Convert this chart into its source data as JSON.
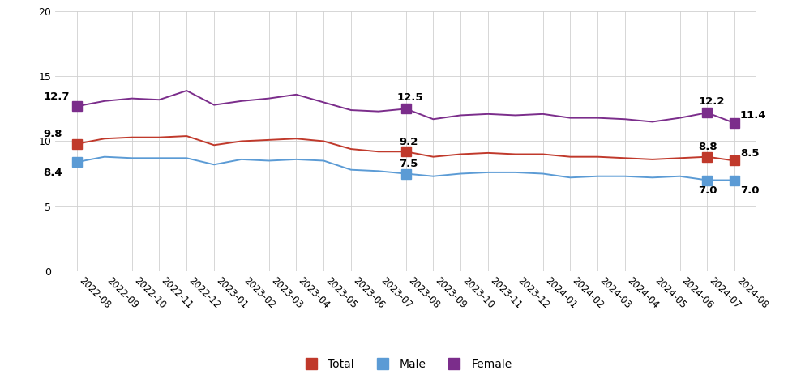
{
  "labels": [
    "2022-08",
    "2022-09",
    "2022-10",
    "2022-11",
    "2022-12",
    "2023-01",
    "2023-02",
    "2023-03",
    "2023-04",
    "2023-05",
    "2023-06",
    "2023-07",
    "2023-08",
    "2023-09",
    "2023-10",
    "2023-11",
    "2023-12",
    "2024-01",
    "2024-02",
    "2024-03",
    "2024-04",
    "2024-05",
    "2024-06",
    "2024-07",
    "2024-08"
  ],
  "total": [
    9.8,
    10.2,
    10.3,
    10.3,
    10.4,
    9.7,
    10.0,
    10.1,
    10.2,
    10.0,
    9.4,
    9.2,
    9.2,
    8.8,
    9.0,
    9.1,
    9.0,
    9.0,
    8.8,
    8.8,
    8.7,
    8.6,
    8.7,
    8.8,
    8.5
  ],
  "male": [
    8.4,
    8.8,
    8.7,
    8.7,
    8.7,
    8.2,
    8.6,
    8.5,
    8.6,
    8.5,
    7.8,
    7.7,
    7.5,
    7.3,
    7.5,
    7.6,
    7.6,
    7.5,
    7.2,
    7.3,
    7.3,
    7.2,
    7.3,
    7.0,
    7.0
  ],
  "female": [
    12.7,
    13.1,
    13.3,
    13.2,
    13.9,
    12.8,
    13.1,
    13.3,
    13.6,
    13.0,
    12.4,
    12.3,
    12.5,
    11.7,
    12.0,
    12.1,
    12.0,
    12.1,
    11.8,
    11.8,
    11.7,
    11.5,
    11.8,
    12.2,
    11.4
  ],
  "total_color": "#c0392b",
  "male_color": "#5b9bd5",
  "female_color": "#7b2d8b",
  "bg_color": "#ffffff",
  "grid_color": "#d0d0d0",
  "ylim": [
    0,
    20
  ],
  "yticks": [
    0,
    5,
    10,
    15,
    20
  ],
  "ann_fontsize": 9.5,
  "ann_fontweight": "bold",
  "tick_fontsize": 8.5,
  "legend_fontsize": 10
}
